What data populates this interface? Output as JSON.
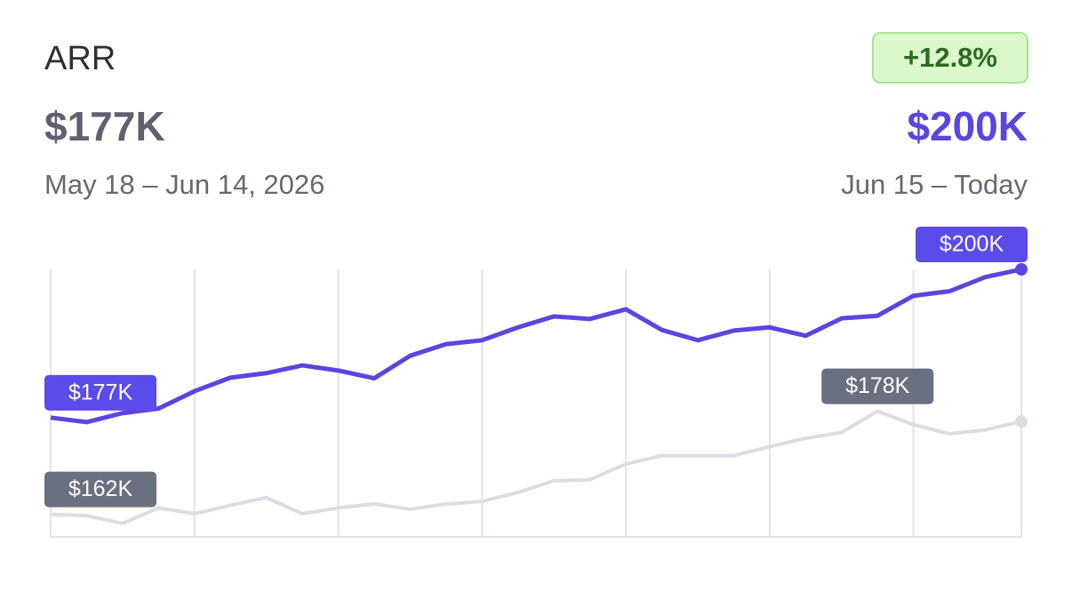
{
  "header": {
    "title": "ARR",
    "previous_value": "$177K",
    "previous_range": "May 18 – Jun 14, 2026",
    "change": "+12.8%",
    "current_value": "$200K",
    "current_range": "Jun 15 – Today"
  },
  "chart_data": {
    "type": "line",
    "ylim": [
      158.5,
      200
    ],
    "series": [
      {
        "color": "#5b45e0",
        "values": [
          177,
          176.3,
          177.7,
          178.4,
          181.1,
          183.2,
          183.9,
          185.1,
          184.3,
          183.1,
          186.6,
          188.4,
          189,
          191,
          192.7,
          192.3,
          193.8,
          190.6,
          189,
          190.5,
          191,
          189.7,
          192.4,
          192.8,
          195.9,
          196.6,
          198.8,
          200
        ],
        "value_labels": [
          "$177K",
          null,
          null,
          null,
          null,
          null,
          null,
          null,
          null,
          null,
          null,
          null,
          null,
          null,
          null,
          null,
          null,
          null,
          null,
          null,
          null,
          null,
          null,
          null,
          null,
          null,
          null,
          "$200K"
        ]
      },
      {
        "color": "#dcdde0",
        "values": [
          162,
          161.8,
          160.6,
          163,
          162.1,
          163.4,
          164.6,
          162.1,
          163,
          163.6,
          162.8,
          163.6,
          164,
          165.4,
          167.2,
          167.4,
          169.8,
          171.1,
          171.1,
          171.1,
          172.5,
          173.8,
          174.7,
          178,
          175.9,
          174.5,
          175.1,
          176.4
        ],
        "value_labels": [
          "$162K",
          null,
          null,
          null,
          null,
          null,
          null,
          null,
          null,
          null,
          null,
          null,
          null,
          null,
          null,
          null,
          null,
          null,
          null,
          null,
          null,
          null,
          null,
          "$178K",
          null,
          null,
          null,
          null
        ]
      }
    ]
  }
}
